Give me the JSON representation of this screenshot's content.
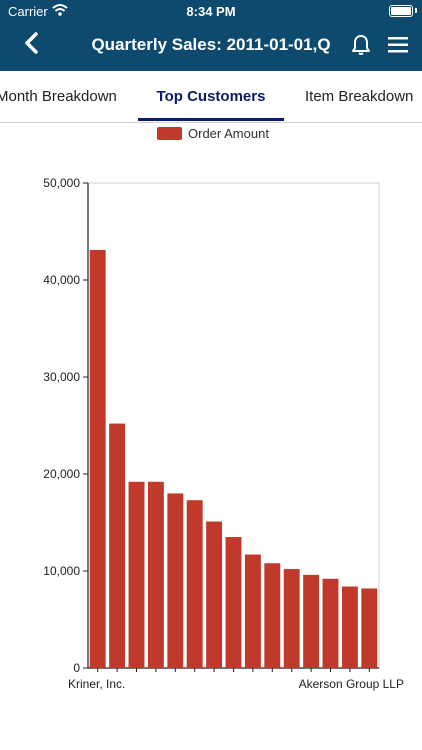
{
  "status_bar": {
    "carrier": "Carrier",
    "time": "8:34 PM"
  },
  "header": {
    "title": "Quarterly Sales: 2011-01-01,Q",
    "back_icon": "chevron-left-icon",
    "bell_icon": "bell-icon",
    "menu_icon": "hamburger-menu-icon"
  },
  "tabs": [
    {
      "label": "Month Breakdown",
      "active": false
    },
    {
      "label": "Top Customers",
      "active": true
    },
    {
      "label": "Item Breakdown",
      "active": false
    }
  ],
  "colors": {
    "header": "#0d4a6e",
    "active_tab": "#0d1b6e",
    "bar": "#c0392b"
  },
  "chart_data": {
    "type": "bar",
    "legend": [
      "Order Amount"
    ],
    "legend_position": "top-center",
    "ylim": [
      0,
      50000
    ],
    "y_ticks": [
      "0",
      "10,000",
      "20,000",
      "30,000",
      "40,000",
      "50,000"
    ],
    "categories": [
      "Kriner, Inc.",
      "",
      "",
      "",
      "",
      "",
      "",
      "",
      "",
      "",
      "",
      "",
      "",
      "",
      "Akerson Group LLP"
    ],
    "series": [
      {
        "name": "Order Amount",
        "values": [
          43100,
          25200,
          19200,
          19200,
          18000,
          17300,
          15100,
          13500,
          11700,
          10800,
          10200,
          9600,
          9200,
          8400,
          8200
        ]
      }
    ],
    "grid": false
  }
}
